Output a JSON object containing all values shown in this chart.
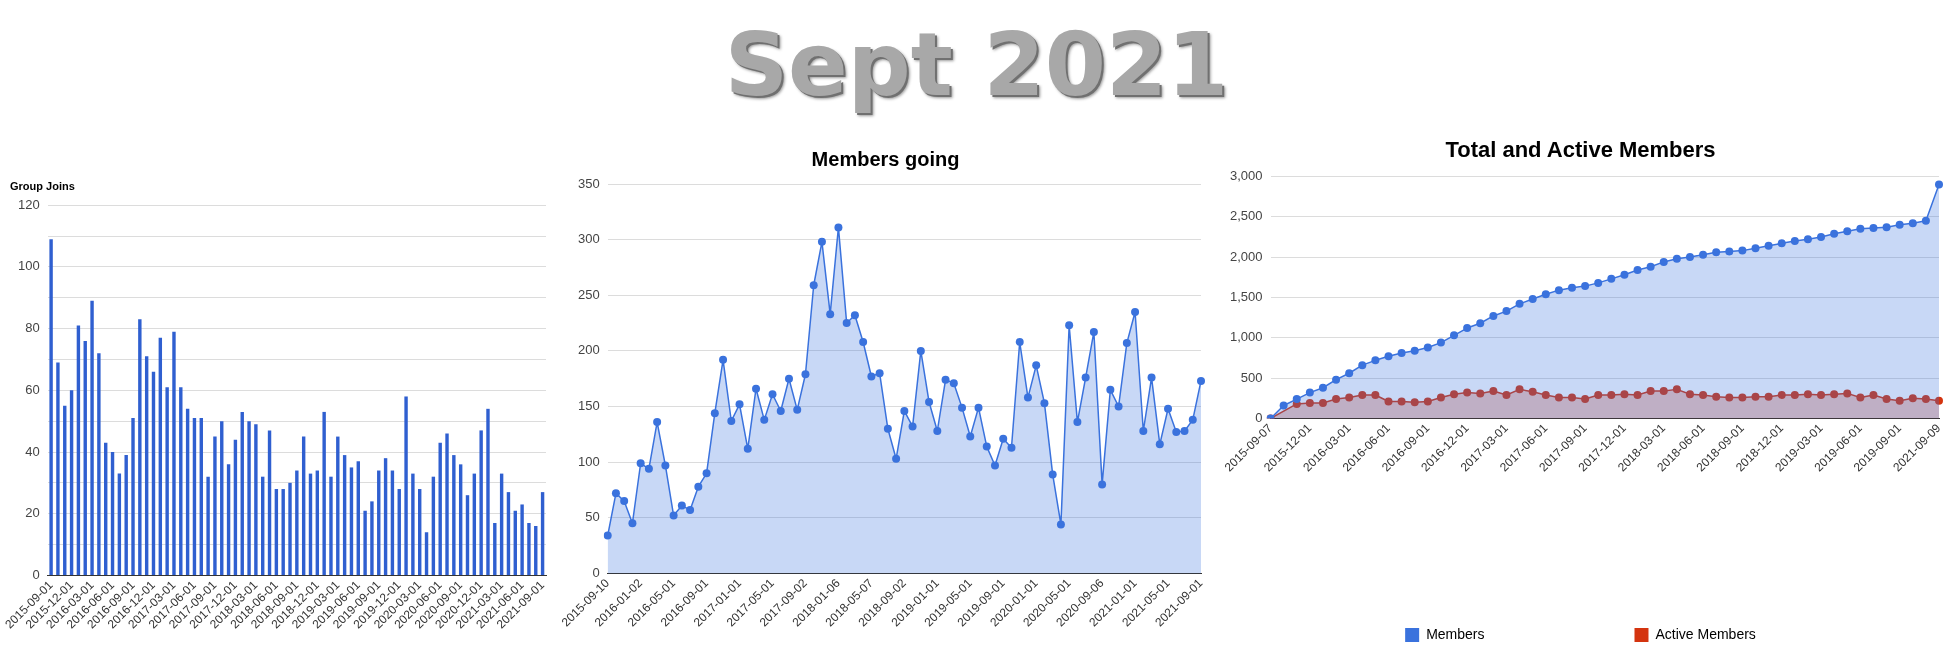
{
  "chart_data": [
    {
      "type": "other",
      "title": "Sept 2021"
    },
    {
      "type": "bar",
      "title": "Group Joins",
      "color": "#2f5fd0",
      "grid": "y",
      "categories": [
        "2015-09-01",
        null,
        null,
        "2015-12-01",
        null,
        null,
        "2016-03-01",
        null,
        null,
        "2016-06-01",
        null,
        null,
        "2016-09-01",
        null,
        null,
        "2016-12-01",
        null,
        null,
        "2017-03-01",
        null,
        null,
        "2017-06-01",
        null,
        null,
        "2017-09-01",
        null,
        null,
        "2017-12-01",
        null,
        null,
        "2018-03-01",
        null,
        null,
        "2018-06-01",
        null,
        null,
        "2018-09-01",
        null,
        null,
        "2018-12-01",
        null,
        null,
        "2019-03-01",
        null,
        null,
        "2019-06-01",
        null,
        null,
        "2019-09-01",
        null,
        null,
        "2019-12-01",
        null,
        null,
        "2020-03-01",
        null,
        null,
        "2020-06-01",
        null,
        null,
        "2020-09-01",
        null,
        null,
        "2020-12-01",
        null,
        null,
        "2021-03-01",
        null,
        null,
        "2021-06-01",
        null,
        null,
        "2021-09-01"
      ],
      "values": [
        109,
        69,
        55,
        60,
        81,
        76,
        89,
        72,
        43,
        40,
        33,
        39,
        51,
        83,
        71,
        66,
        77,
        61,
        79,
        61,
        54,
        51,
        51,
        32,
        45,
        50,
        36,
        44,
        53,
        50,
        49,
        32,
        47,
        28,
        28,
        30,
        34,
        45,
        33,
        34,
        53,
        32,
        45,
        39,
        35,
        37,
        21,
        24,
        34,
        38,
        34,
        28,
        58,
        33,
        28,
        14,
        32,
        43,
        46,
        39,
        36,
        26,
        33,
        47,
        54,
        17,
        33,
        27,
        21,
        23,
        17,
        16,
        27
      ],
      "ylim": [
        0,
        120
      ],
      "yticks": [
        0,
        {
          "value": 10,
          "label": null
        },
        20,
        {
          "value": 30,
          "label": null
        },
        40,
        {
          "value": 50,
          "label": null
        },
        60,
        {
          "value": 70,
          "label": null
        },
        80,
        {
          "value": 90,
          "label": null
        },
        100,
        {
          "value": 110,
          "label": null
        },
        120
      ]
    },
    {
      "type": "area",
      "title": "Members going",
      "color": "#3a72dd",
      "marker": "circle",
      "grid": "y",
      "categories": [
        "2015-09-10",
        null,
        null,
        null,
        "2016-01-02",
        null,
        null,
        null,
        "2016-05-01",
        null,
        null,
        null,
        "2016-09-01",
        null,
        null,
        null,
        "2017-01-01",
        null,
        null,
        null,
        "2017-05-01",
        null,
        null,
        null,
        "2017-09-02",
        null,
        null,
        null,
        "2018-01-06",
        null,
        null,
        null,
        "2018-05-07",
        null,
        null,
        null,
        "2018-09-02",
        null,
        null,
        null,
        "2019-01-01",
        null,
        null,
        null,
        "2019-05-01",
        null,
        null,
        null,
        "2019-09-01",
        null,
        null,
        null,
        "2020-01-01",
        null,
        null,
        null,
        "2020-05-01",
        null,
        null,
        null,
        "2020-09-06",
        null,
        null,
        null,
        "2021-01-01",
        null,
        null,
        null,
        "2021-05-01",
        null,
        null,
        null,
        "2021-09-01"
      ],
      "values": [
        34,
        72,
        65,
        45,
        99,
        94,
        136,
        97,
        52,
        61,
        57,
        78,
        90,
        144,
        192,
        137,
        152,
        112,
        166,
        138,
        161,
        146,
        175,
        147,
        179,
        259,
        298,
        233,
        311,
        225,
        232,
        208,
        177,
        180,
        130,
        103,
        146,
        132,
        200,
        154,
        128,
        174,
        171,
        149,
        123,
        149,
        114,
        97,
        121,
        113,
        208,
        158,
        187,
        153,
        89,
        44,
        223,
        136,
        176,
        217,
        80,
        165,
        150,
        207,
        235,
        128,
        176,
        116,
        148,
        127,
        128,
        138,
        173
      ],
      "ylim": [
        0,
        350
      ],
      "yticks": [
        0,
        50,
        100,
        150,
        200,
        250,
        300,
        350
      ]
    },
    {
      "type": "area",
      "title": "Total and Active Members",
      "marker": "circle",
      "grid": "y",
      "legend": "bottom",
      "categories": [
        "2015-09-07",
        null,
        null,
        "2015-12-01",
        null,
        null,
        "2016-03-01",
        null,
        null,
        "2016-06-01",
        null,
        null,
        "2016-09-01",
        null,
        null,
        "2016-12-01",
        null,
        null,
        "2017-03-01",
        null,
        null,
        "2017-06-01",
        null,
        null,
        "2017-09-01",
        null,
        null,
        "2017-12-01",
        null,
        null,
        "2018-03-01",
        null,
        null,
        "2018-06-01",
        null,
        null,
        "2018-09-01",
        null,
        null,
        "2018-12-01",
        null,
        null,
        "2019-03-01",
        null,
        null,
        "2019-06-01",
        null,
        null,
        "2019-09-01",
        null,
        null,
        "2021-09-09"
      ],
      "series": [
        {
          "name": "Members",
          "color": "#3a72dd",
          "values": [
            0,
            160,
            240,
            320,
            380,
            480,
            560,
            660,
            720,
            770,
            810,
            840,
            880,
            940,
            1030,
            1120,
            1180,
            1270,
            1330,
            1420,
            1480,
            1540,
            1590,
            1620,
            1640,
            1680,
            1730,
            1780,
            1840,
            1880,
            1940,
            1980,
            2000,
            2030,
            2060,
            2070,
            2080,
            2110,
            2140,
            2170,
            2200,
            2220,
            2250,
            2290,
            2320,
            2350,
            2360,
            2370,
            2400,
            2420,
            2450,
            2900
          ]
        },
        {
          "name": "Active Members",
          "color": "#d4340f",
          "values": [
            0,
            null,
            180,
            190,
            190,
            240,
            260,
            290,
            290,
            210,
            210,
            200,
            210,
            260,
            300,
            320,
            310,
            340,
            290,
            360,
            330,
            290,
            260,
            260,
            240,
            290,
            290,
            300,
            290,
            340,
            340,
            360,
            300,
            290,
            270,
            260,
            260,
            270,
            270,
            290,
            290,
            300,
            290,
            300,
            310,
            260,
            290,
            240,
            220,
            250,
            240,
            220
          ]
        }
      ],
      "ylim": [
        0,
        3000
      ],
      "yticks": [
        0,
        500,
        {
          "value": 1000,
          "label": "1,000"
        },
        {
          "value": 1500,
          "label": "1,500"
        },
        {
          "value": 2000,
          "label": "2,000"
        },
        {
          "value": 2500,
          "label": "2,500"
        },
        {
          "value": 3000,
          "label": "3,000"
        }
      ]
    }
  ]
}
